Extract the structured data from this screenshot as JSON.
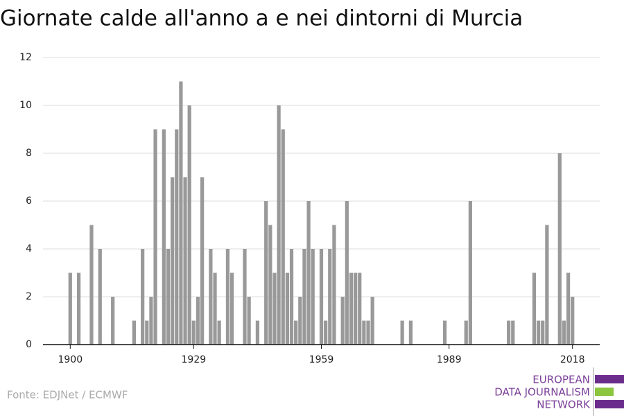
{
  "chart_data": {
    "type": "bar",
    "title": "Giornate calde all'anno a e nei dintorni di Murcia",
    "x": [
      1900,
      1901,
      1902,
      1903,
      1904,
      1905,
      1906,
      1907,
      1908,
      1909,
      1910,
      1911,
      1912,
      1913,
      1914,
      1915,
      1916,
      1917,
      1918,
      1919,
      1920,
      1921,
      1922,
      1923,
      1924,
      1925,
      1926,
      1927,
      1928,
      1929,
      1930,
      1931,
      1932,
      1933,
      1934,
      1935,
      1936,
      1937,
      1938,
      1939,
      1940,
      1941,
      1942,
      1943,
      1944,
      1945,
      1946,
      1947,
      1948,
      1949,
      1950,
      1951,
      1952,
      1953,
      1954,
      1955,
      1956,
      1957,
      1958,
      1959,
      1960,
      1961,
      1962,
      1963,
      1964,
      1965,
      1966,
      1967,
      1968,
      1969,
      1970,
      1971,
      1972,
      1973,
      1974,
      1975,
      1976,
      1977,
      1978,
      1979,
      1980,
      1981,
      1982,
      1983,
      1984,
      1985,
      1986,
      1987,
      1988,
      1989,
      1990,
      1991,
      1992,
      1993,
      1994,
      1995,
      1996,
      1997,
      1998,
      1999,
      2000,
      2001,
      2002,
      2003,
      2004,
      2005,
      2006,
      2007,
      2008,
      2009,
      2010,
      2011,
      2012,
      2013,
      2014,
      2015,
      2016,
      2017,
      2018
    ],
    "values": [
      3,
      0,
      3,
      0,
      0,
      5,
      0,
      4,
      0,
      0,
      2,
      0,
      0,
      0,
      0,
      1,
      0,
      4,
      1,
      2,
      9,
      0,
      9,
      4,
      7,
      9,
      11,
      7,
      10,
      1,
      2,
      7,
      0,
      4,
      3,
      1,
      0,
      4,
      3,
      0,
      0,
      4,
      2,
      0,
      1,
      0,
      6,
      5,
      3,
      10,
      9,
      3,
      4,
      1,
      2,
      4,
      6,
      4,
      0,
      4,
      1,
      4,
      5,
      0,
      2,
      6,
      3,
      3,
      3,
      1,
      1,
      2,
      0,
      0,
      0,
      0,
      0,
      0,
      1,
      0,
      1,
      0,
      0,
      0,
      0,
      0,
      0,
      0,
      1,
      0,
      0,
      0,
      0,
      1,
      6,
      0,
      0,
      0,
      0,
      0,
      0,
      0,
      0,
      1,
      1,
      0,
      0,
      0,
      0,
      3,
      1,
      1,
      5,
      0,
      0,
      8,
      1,
      3,
      2
    ],
    "color": "#999999",
    "xlim": [
      1893.6,
      2024.4
    ],
    "xticks": [
      1900,
      1929,
      1959,
      1989,
      2018
    ],
    "ylim": [
      0,
      12
    ],
    "yticks": [
      0,
      2,
      4,
      6,
      8,
      10,
      12
    ],
    "grid": true,
    "source": "Fonte: EDJNet / ECMWF"
  },
  "logo": {
    "lines": [
      "EUROPEAN",
      "DATA JOURNALISM",
      "NETWORK"
    ]
  }
}
